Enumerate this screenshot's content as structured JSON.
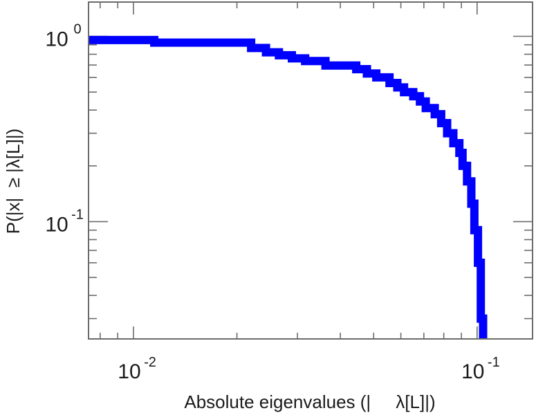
{
  "chart_data": {
    "type": "line",
    "subtype": "step",
    "title": "",
    "xlabel": "Absolute eigenvalues (|     λ[L]|)",
    "ylabel": "P(|x|  ≥ |λ[L]|)",
    "x_scale": "log",
    "y_scale": "log",
    "xlim": [
      0.0074,
      0.145
    ],
    "ylim": [
      0.0233,
      1.53
    ],
    "x_major_ticks": [
      {
        "value": 0.01,
        "base": "10",
        "exp": "-2"
      },
      {
        "value": 0.1,
        "base": "10",
        "exp": "-1"
      }
    ],
    "y_major_ticks": [
      {
        "value": 1,
        "base": "10",
        "exp": "0"
      },
      {
        "value": 0.1,
        "base": "10",
        "exp": "-1"
      }
    ],
    "grid": false,
    "legend": "none",
    "line_color": "#0000ff",
    "series": [
      {
        "x": [
          0.0074,
          0.0115,
          0.022,
          0.0243,
          0.0265,
          0.0289,
          0.0316,
          0.0362,
          0.0445,
          0.0478,
          0.0509,
          0.0556,
          0.0586,
          0.0613,
          0.0652,
          0.0682,
          0.0709,
          0.0753,
          0.0786,
          0.0818,
          0.0853,
          0.0888,
          0.0907,
          0.0935,
          0.0962,
          0.0982,
          0.1006,
          0.1025,
          0.1041
        ],
        "y": [
          0.955,
          0.925,
          0.865,
          0.82,
          0.79,
          0.76,
          0.735,
          0.695,
          0.665,
          0.63,
          0.6,
          0.56,
          0.53,
          0.5,
          0.475,
          0.445,
          0.41,
          0.38,
          0.34,
          0.3,
          0.265,
          0.235,
          0.2,
          0.165,
          0.125,
          0.09,
          0.06,
          0.03,
          0.0233
        ]
      }
    ]
  }
}
